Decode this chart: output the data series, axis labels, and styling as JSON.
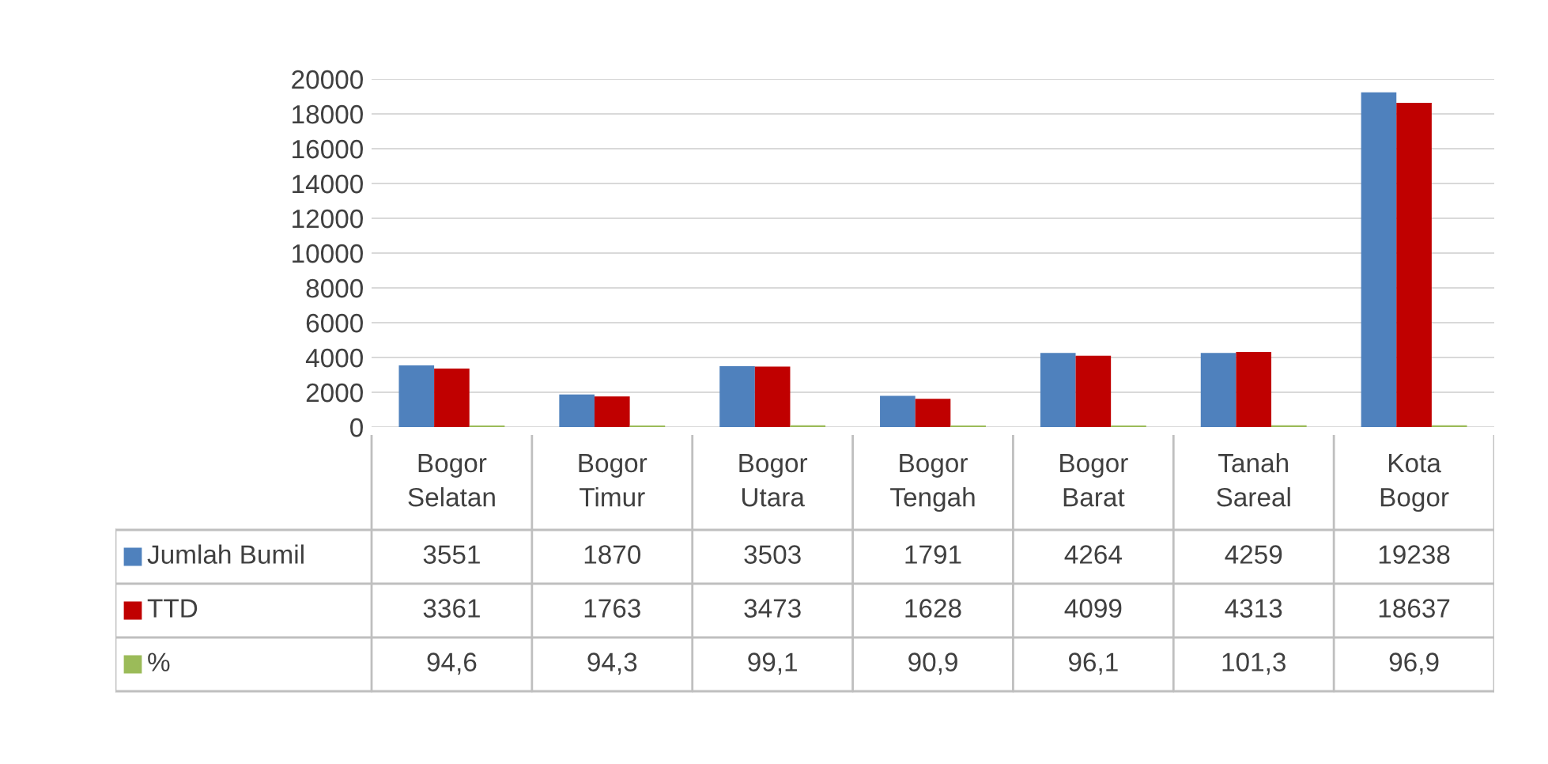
{
  "chart_data": {
    "type": "bar",
    "categories": [
      "Bogor Selatan",
      "Bogor Timur",
      "Bogor Utara",
      "Bogor Tengah",
      "Bogor Barat",
      "Tanah Sareal",
      "Kota Bogor"
    ],
    "series": [
      {
        "name": "Jumlah Bumil",
        "color": "#4f81bd",
        "values": [
          3551,
          1870,
          3503,
          1791,
          4264,
          4259,
          19238
        ],
        "value_labels": [
          "3551",
          "1870",
          "3503",
          "1791",
          "4264",
          "4259",
          "19238"
        ]
      },
      {
        "name": "TTD",
        "color": "#c00000",
        "values": [
          3361,
          1763,
          3473,
          1628,
          4099,
          4313,
          18637
        ],
        "value_labels": [
          "3361",
          "1763",
          "3473",
          "1628",
          "4099",
          "4313",
          "18637"
        ]
      },
      {
        "name": "%",
        "color": "#9bbb59",
        "values": [
          94.6,
          94.3,
          99.1,
          90.9,
          96.1,
          101.3,
          96.9
        ],
        "value_labels": [
          "94,6",
          "94,3",
          "99,1",
          "90,9",
          "96,1",
          "101,3",
          "96,9"
        ]
      }
    ],
    "ylim": [
      0,
      20000
    ],
    "yticks": [
      0,
      2000,
      4000,
      6000,
      8000,
      10000,
      12000,
      14000,
      16000,
      18000,
      20000
    ],
    "grid": "y",
    "legend": "bottom"
  }
}
